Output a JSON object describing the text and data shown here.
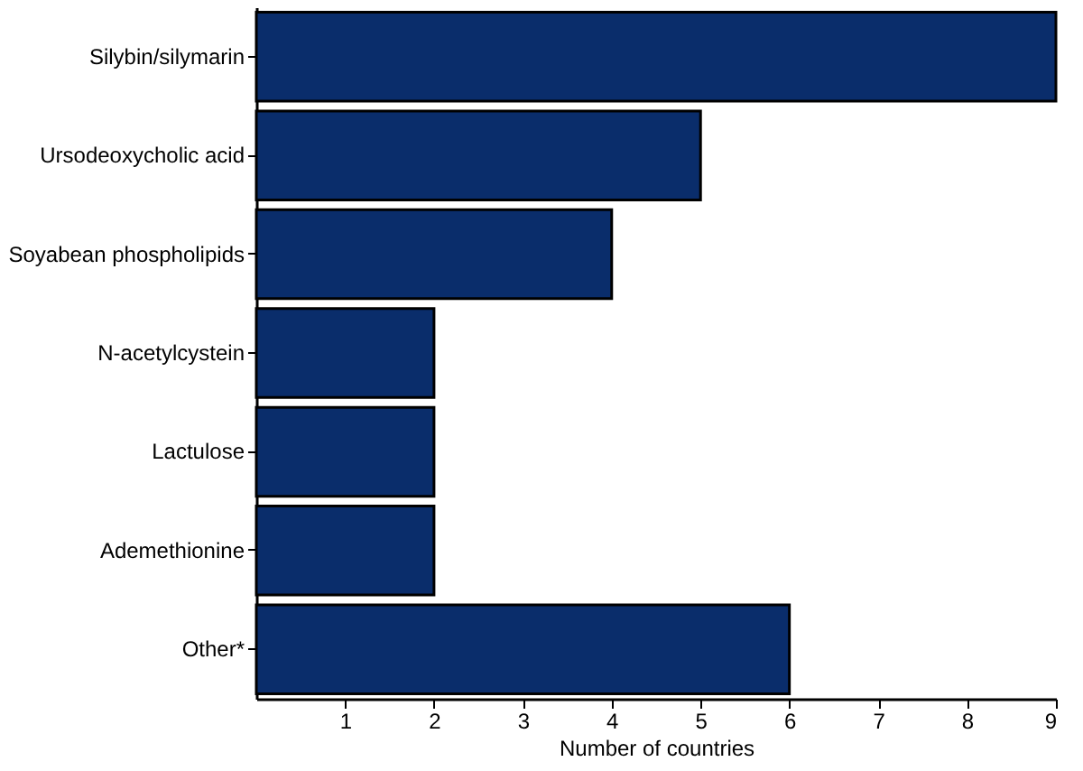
{
  "chart_data": {
    "type": "bar",
    "orientation": "horizontal",
    "categories": [
      "Silybin/silymarin",
      "Ursodeoxycholic acid",
      "Soyabean phospholipids",
      "N-acetylcystein",
      "Lactulose",
      "Ademethionine",
      "Other*"
    ],
    "values": [
      9,
      5,
      4,
      2,
      2,
      2,
      6
    ],
    "color": "#0a2d6b",
    "xlabel": "Number of countries",
    "xlim": [
      0,
      9
    ],
    "xticks": [
      1,
      2,
      3,
      4,
      5,
      6,
      7,
      8,
      9
    ],
    "grid": false
  }
}
